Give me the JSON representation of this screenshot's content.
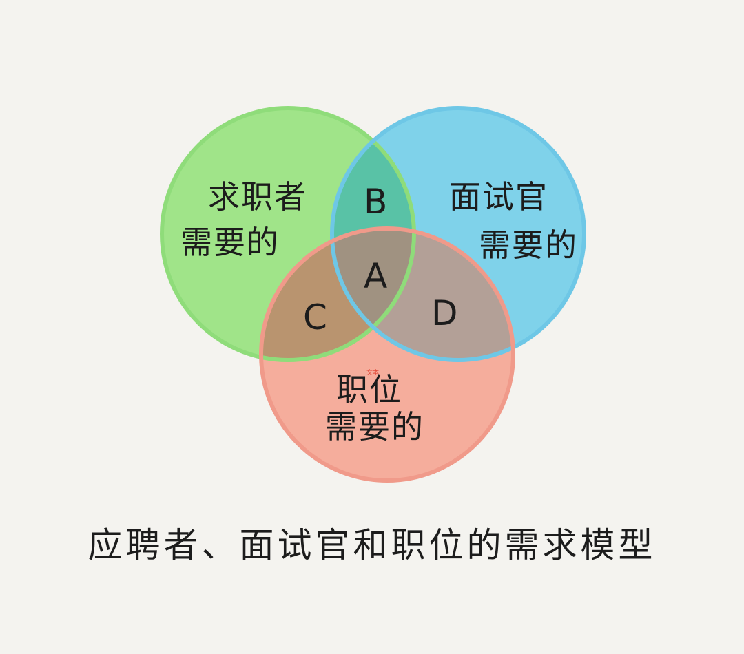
{
  "diagram": {
    "circles": [
      {
        "id": "jobseeker",
        "lines": [
          "求职者",
          "需要的"
        ],
        "fill": "#a0e489",
        "stroke": "#8fdc7a"
      },
      {
        "id": "interviewer",
        "lines": [
          "面试官",
          "需要的"
        ],
        "fill": "#7fd2ea",
        "stroke": "#6ec7e6"
      },
      {
        "id": "position",
        "lines": [
          "职位",
          "需要的"
        ],
        "fill": "#f5ad9c",
        "stroke": "#f09a8a"
      }
    ],
    "regions": {
      "A": {
        "label": "A",
        "fill": "#a09281"
      },
      "B": {
        "label": "B",
        "fill": "#59c2a6"
      },
      "C": {
        "label": "C",
        "fill": "#b9946f"
      },
      "D": {
        "label": "D",
        "fill": "#b3a097"
      }
    },
    "small_mark": "文本",
    "caption": "应聘者、面试官和职位的需求模型"
  }
}
